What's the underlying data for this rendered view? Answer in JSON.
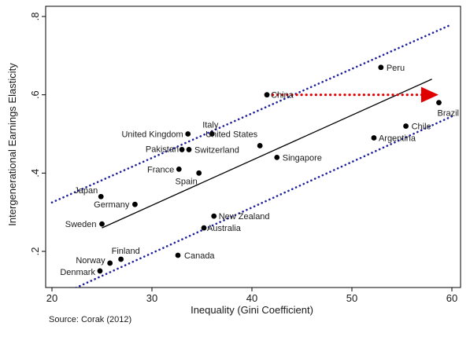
{
  "source_note": "Source: Corak (2012)",
  "chart_data": {
    "type": "scatter",
    "title": "",
    "xlabel": "Inequality (Gini Coefficient)",
    "ylabel": "Intergenerational Earnings Elasticity",
    "xlim": [
      20,
      60
    ],
    "ylim": [
      0.1,
      0.8
    ],
    "xticks": [
      20,
      30,
      40,
      50,
      60
    ],
    "yticks": [
      0.2,
      0.4,
      0.6,
      0.8
    ],
    "ytick_labels": [
      ".2",
      ".4",
      ".6",
      ".8"
    ],
    "grid": false,
    "point_color": "#000000",
    "points": [
      {
        "label": "Denmark",
        "x": 24.8,
        "y": 0.15
      },
      {
        "label": "Norway",
        "x": 25.8,
        "y": 0.17
      },
      {
        "label": "Finland",
        "x": 26.9,
        "y": 0.18
      },
      {
        "label": "Sweden",
        "x": 25.0,
        "y": 0.27
      },
      {
        "label": "Germany",
        "x": 28.3,
        "y": 0.32
      },
      {
        "label": "Japan",
        "x": 24.9,
        "y": 0.34
      },
      {
        "label": "Canada",
        "x": 32.6,
        "y": 0.19
      },
      {
        "label": "Australia",
        "x": 35.2,
        "y": 0.26
      },
      {
        "label": "New Zealand",
        "x": 36.2,
        "y": 0.29
      },
      {
        "label": "Spain",
        "x": 34.7,
        "y": 0.4
      },
      {
        "label": "France",
        "x": 32.7,
        "y": 0.41
      },
      {
        "label": "Pakistan",
        "x": 33.0,
        "y": 0.46
      },
      {
        "label": "Switzerland",
        "x": 33.7,
        "y": 0.46
      },
      {
        "label": "United Kingdom",
        "x": 33.6,
        "y": 0.5
      },
      {
        "label": "Italy",
        "x": 36.0,
        "y": 0.5
      },
      {
        "label": "United States",
        "x": 40.8,
        "y": 0.47
      },
      {
        "label": "Singapore",
        "x": 42.5,
        "y": 0.44
      },
      {
        "label": "China",
        "x": 41.5,
        "y": 0.6
      },
      {
        "label": "Peru",
        "x": 52.9,
        "y": 0.67
      },
      {
        "label": "Argentina",
        "x": 52.2,
        "y": 0.49
      },
      {
        "label": "Chile",
        "x": 55.4,
        "y": 0.52
      },
      {
        "label": "Brazil",
        "x": 58.7,
        "y": 0.58
      }
    ],
    "fit_line": {
      "x": [
        25.0,
        58.0
      ],
      "y": [
        0.26,
        0.64
      ],
      "color": "#000000"
    },
    "confidence_bands": [
      {
        "x": [
          20.0,
          60.0
        ],
        "y": [
          0.325,
          0.78
        ],
        "color": "#1f1f9e",
        "style": "dotted"
      },
      {
        "x": [
          20.5,
          60.0
        ],
        "y": [
          0.085,
          0.545
        ],
        "color": "#1f1f9e",
        "style": "dotted"
      }
    ],
    "annotation_arrow": {
      "x": [
        41.6,
        58.5
      ],
      "y": [
        0.6,
        0.6
      ],
      "color": "#e00000",
      "style": "dotted"
    }
  }
}
